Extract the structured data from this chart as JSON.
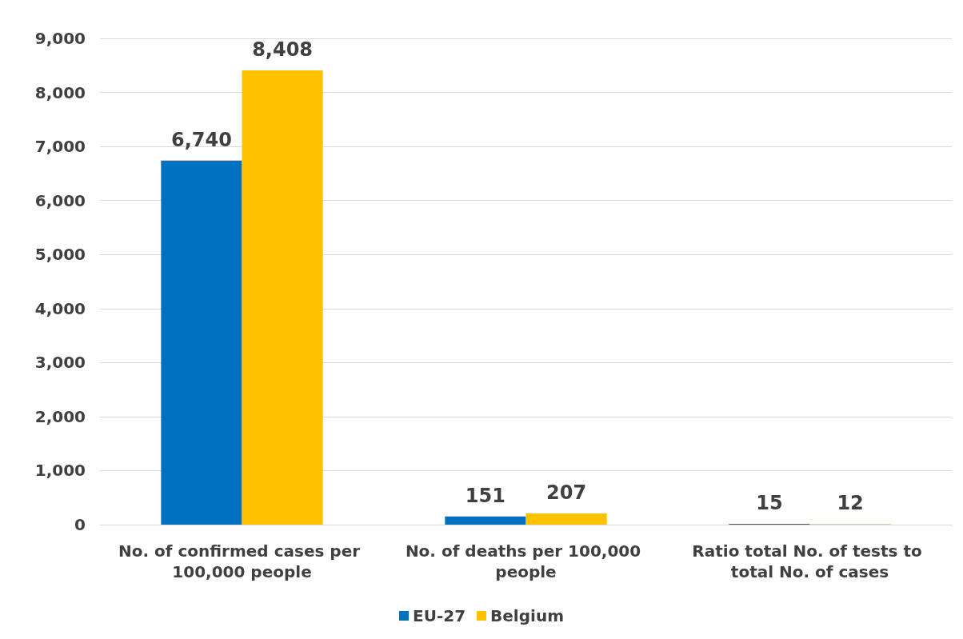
{
  "chart_data": {
    "type": "bar",
    "categories": [
      "No. of confirmed cases per 100,000 people",
      "No. of deaths per 100,000 people",
      "Ratio total No. of tests to total No. of cases"
    ],
    "series": [
      {
        "name": "EU-27",
        "color": "#0070c0",
        "values": [
          6740,
          151,
          15
        ],
        "value_labels": [
          "6,740",
          "151",
          "15"
        ]
      },
      {
        "name": "Belgium",
        "color": "#ffc000",
        "values": [
          8408,
          207,
          12
        ],
        "value_labels": [
          "8,408",
          "207",
          "12"
        ]
      }
    ],
    "ylim": [
      0,
      9000
    ],
    "yticks": [
      {
        "value": 0,
        "label": "0"
      },
      {
        "value": 1000,
        "label": "1,000"
      },
      {
        "value": 2000,
        "label": "2,000"
      },
      {
        "value": 3000,
        "label": "3,000"
      },
      {
        "value": 4000,
        "label": "4,000"
      },
      {
        "value": 5000,
        "label": "5,000"
      },
      {
        "value": 6000,
        "label": "6,000"
      },
      {
        "value": 7000,
        "label": "7,000"
      },
      {
        "value": 8000,
        "label": "8,000"
      },
      {
        "value": 9000,
        "label": "9,000"
      }
    ],
    "grid": "y",
    "legend": "bottom"
  }
}
